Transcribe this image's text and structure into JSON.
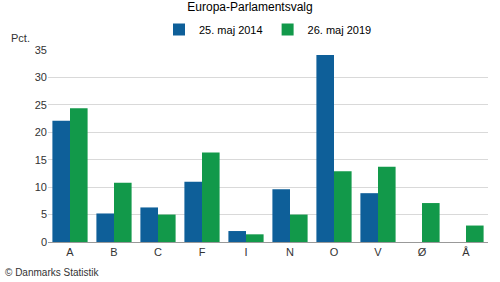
{
  "chart_data": {
    "type": "bar",
    "title": "Europa-Parlamentsvalg",
    "ylabel": "Pct.",
    "source": "© Danmarks Statistik",
    "categories": [
      "A",
      "B",
      "C",
      "F",
      "I",
      "N",
      "O",
      "V",
      "Ø",
      "Å"
    ],
    "series": [
      {
        "name": "25. maj 2014",
        "color": "#0e5f99",
        "values": [
          22.1,
          5.2,
          6.3,
          11.0,
          2.0,
          9.6,
          34.1,
          8.9,
          null,
          null
        ]
      },
      {
        "name": "26. maj 2019",
        "color": "#12994a",
        "values": [
          24.4,
          10.8,
          5.0,
          16.3,
          1.4,
          5.0,
          12.9,
          13.7,
          7.1,
          3.0
        ]
      }
    ],
    "ylim": [
      0,
      35
    ],
    "yticks": [
      0,
      5,
      10,
      15,
      20,
      25,
      30,
      35
    ],
    "grid": true,
    "legend": "top"
  }
}
